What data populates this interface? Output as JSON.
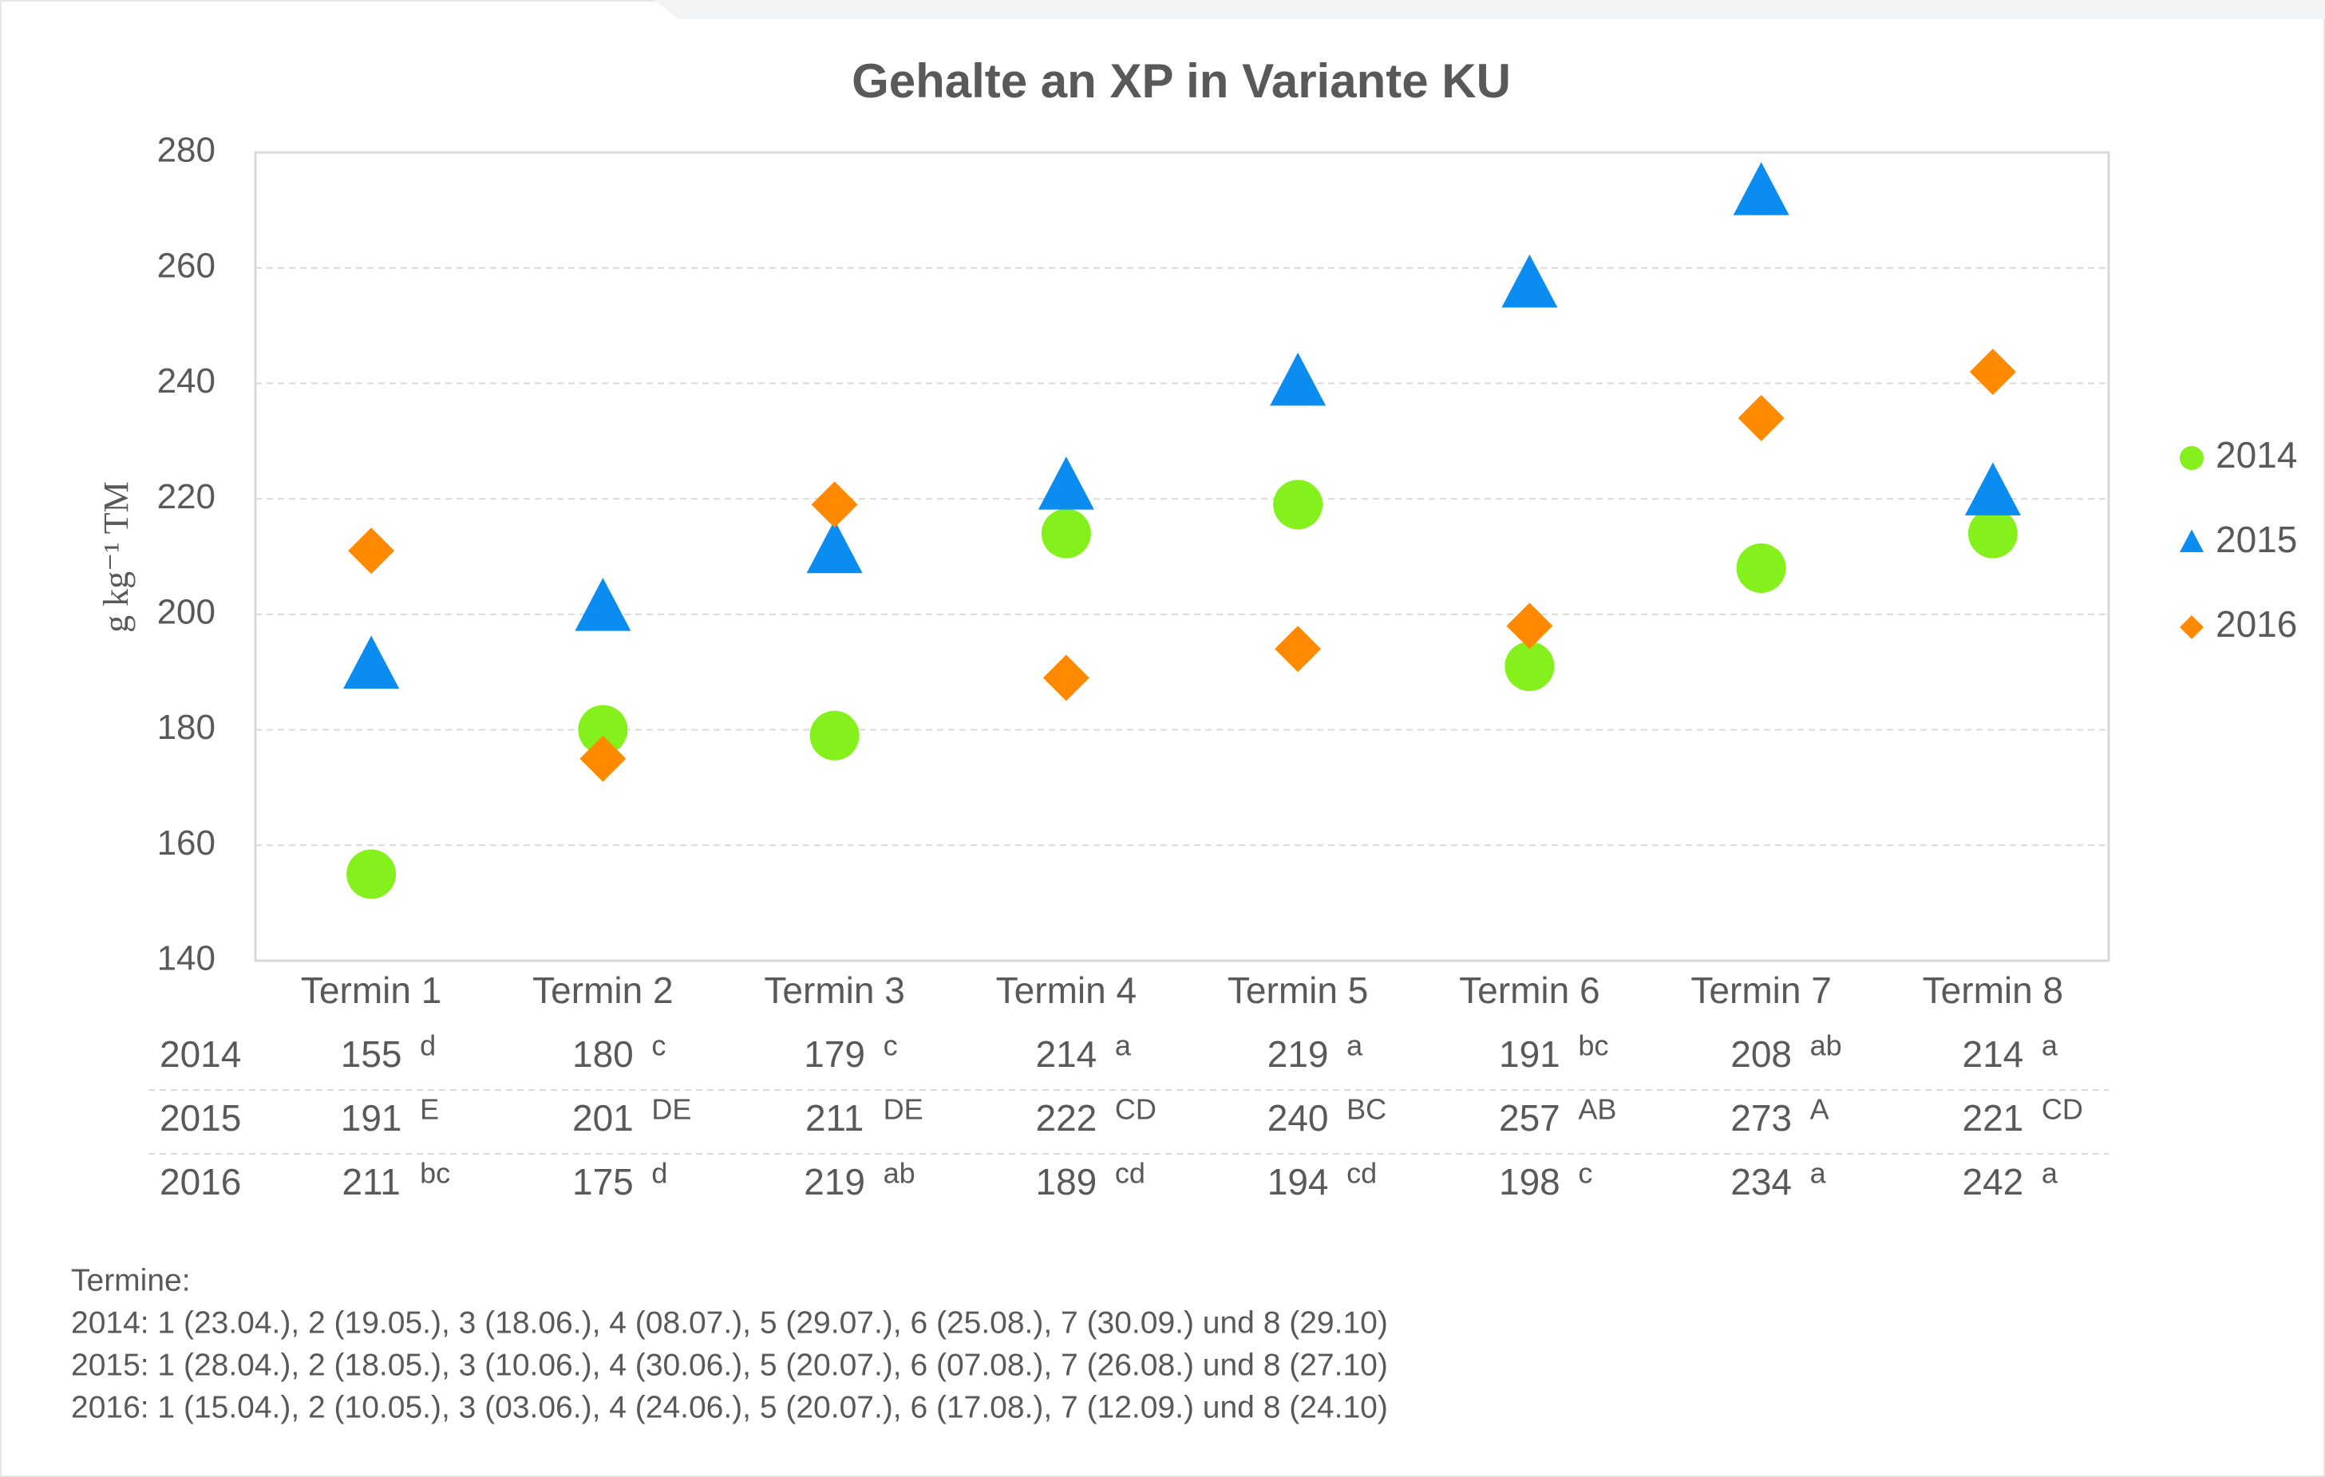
{
  "chart_data": {
    "type": "scatter",
    "title": "Gehalte an XP in Variante KU",
    "y_label": "g kg⁻¹ TM",
    "categories": [
      "Termin 1",
      "Termin 2",
      "Termin 3",
      "Termin 4",
      "Termin 5",
      "Termin 6",
      "Termin 7",
      "Termin 8"
    ],
    "series": [
      {
        "name": "2014",
        "color": "#84f01c",
        "marker": "circle",
        "values": [
          155,
          180,
          179,
          214,
          219,
          191,
          208,
          214
        ],
        "letters": [
          "d",
          "c",
          "c",
          "a",
          "a",
          "bc",
          "ab",
          "a"
        ]
      },
      {
        "name": "2015",
        "color": "#0a8cf0",
        "marker": "triangle",
        "values": [
          191,
          201,
          211,
          222,
          240,
          257,
          273,
          221
        ],
        "letters": [
          "E",
          "DE",
          "DE",
          "CD",
          "BC",
          "AB",
          "A",
          "CD"
        ]
      },
      {
        "name": "2016",
        "color": "#ff8a00",
        "marker": "diamond",
        "values": [
          211,
          175,
          219,
          189,
          194,
          198,
          234,
          242
        ],
        "letters": [
          "bc",
          "d",
          "ab",
          "cd",
          "cd",
          "c",
          "a",
          "a"
        ]
      }
    ],
    "ylim": [
      140,
      280
    ],
    "yticks": [
      140,
      160,
      180,
      200,
      220,
      240,
      260,
      280
    ],
    "grid": true,
    "legend": "right",
    "notes": [
      "Termine:",
      "2014: 1 (23.04.), 2 (19.05.), 3 (18.06.), 4 (08.07.), 5 (29.07.), 6 (25.08.), 7 (30.09.) und 8 (29.10)",
      "2015: 1 (28.04.), 2 (18.05.), 3 (10.06.), 4 (30.06.), 5 (20.07.), 6 (07.08.), 7 (26.08.) und 8 (27.10)",
      "2016: 1 (15.04.), 2 (10.05.), 3 (03.06.), 4 (24.06.), 5 (20.07.), 6 (17.08.), 7 (12.09.) und 8 (24.10)"
    ]
  }
}
